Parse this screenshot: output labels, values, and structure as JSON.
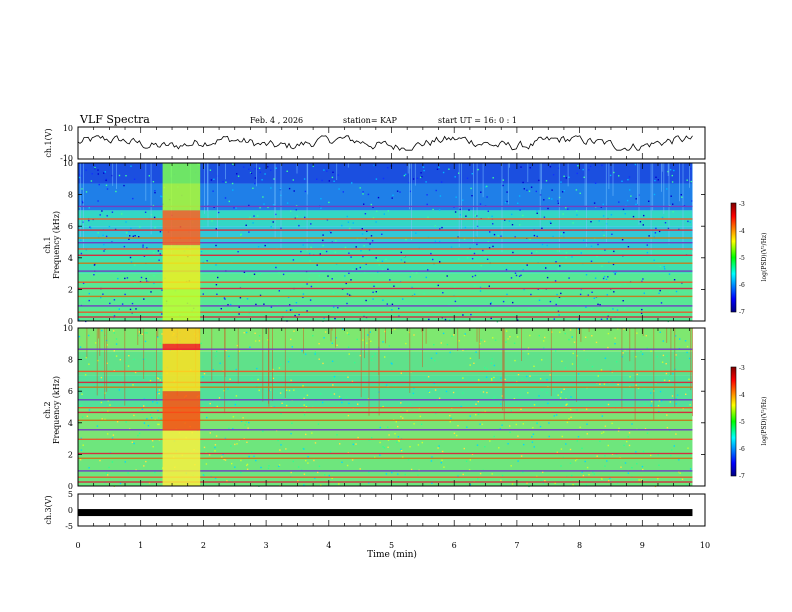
{
  "header": {
    "title": "VLF Spectra",
    "date": "Feb. 4 , 2026",
    "station": "station= KAP",
    "start_time": "start UT =  16: 0 : 1"
  },
  "colors": {
    "background": "#ffffff",
    "axis": "#000000",
    "trace": "#000000"
  },
  "chart_data": [
    {
      "type": "line",
      "id": "ch1-waveform",
      "ylabel": "ch.1(V)",
      "ylim": [
        -10,
        10
      ],
      "yticks": [
        "10",
        "-10"
      ],
      "xlim": [
        0,
        10
      ],
      "series": [
        {
          "name": "ch.1 voltage",
          "description_range": [
            -4,
            4
          ]
        }
      ]
    },
    {
      "type": "heatmap",
      "id": "ch1-spectrogram",
      "ylabel": "Frequency (kHz)",
      "channel_label": "ch.1",
      "ylim": [
        0,
        10
      ],
      "yticks": [
        "0",
        "2",
        "4",
        "6",
        "8",
        "10"
      ],
      "xlim": [
        0,
        10
      ],
      "colorbar": {
        "label": "log(PSD)(V²/Hz)",
        "range": [
          -7,
          -3
        ],
        "ticks": [
          "-3",
          "-4",
          "-5",
          "-6",
          "-7"
        ]
      },
      "lines_khz": [
        0.3,
        0.6,
        1.0,
        1.6,
        2.1,
        2.5,
        3.2,
        3.7,
        4.2,
        4.6,
        5.0,
        5.3,
        5.8,
        6.5,
        7.3
      ],
      "burst_min": [
        1.35,
        1.95
      ]
    },
    {
      "type": "heatmap",
      "id": "ch2-spectrogram",
      "ylabel": "Frequency (kHz)",
      "channel_label": "ch.2",
      "ylim": [
        0,
        10
      ],
      "yticks": [
        "0",
        "2",
        "4",
        "6",
        "8",
        "10"
      ],
      "xlim": [
        0,
        10
      ],
      "colorbar": {
        "label": "log(PSD)(V²/Hz)",
        "range": [
          -7,
          -3
        ],
        "ticks": [
          "-3",
          "-4",
          "-5",
          "-6",
          "-7"
        ]
      },
      "lines_khz": [
        0.3,
        0.6,
        1.0,
        1.8,
        2.1,
        3.0,
        3.6,
        4.2,
        4.7,
        5.0,
        5.5,
        6.3,
        6.6,
        7.3,
        8.7
      ],
      "burst_min": [
        1.35,
        1.95
      ]
    },
    {
      "type": "line",
      "id": "ch3-trace",
      "ylabel": "ch.3(V)",
      "ylim": [
        -5,
        5
      ],
      "yticks": [
        "5",
        "0",
        "-5"
      ],
      "xlim": [
        0,
        10
      ],
      "series": [
        {
          "name": "ch.3 voltage",
          "x": [
            0,
            9.8
          ],
          "y": [
            -0.8,
            -0.8
          ]
        }
      ]
    }
  ],
  "xaxis": {
    "label": "Time (min)",
    "ticks": [
      "0",
      "1",
      "2",
      "3",
      "4",
      "5",
      "6",
      "7",
      "8",
      "9",
      "10"
    ]
  }
}
